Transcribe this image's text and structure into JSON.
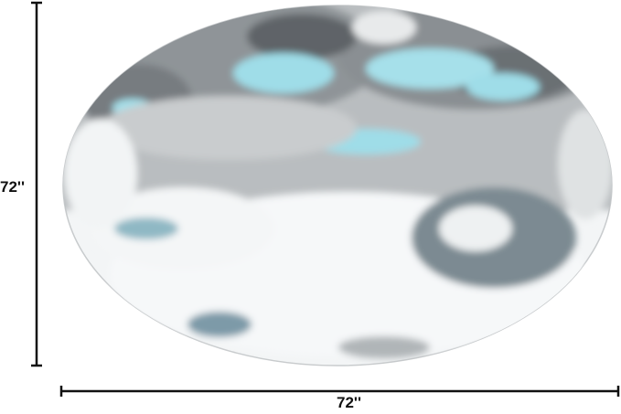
{
  "product": {
    "shape": "round rug",
    "colors": {
      "base": "#f2f4f5",
      "gray": "#9a9fa3",
      "charcoal": "#5a5f63",
      "aqua": "#9fdde8"
    }
  },
  "dimensions": {
    "height_label": "72''",
    "width_label": "72''"
  }
}
